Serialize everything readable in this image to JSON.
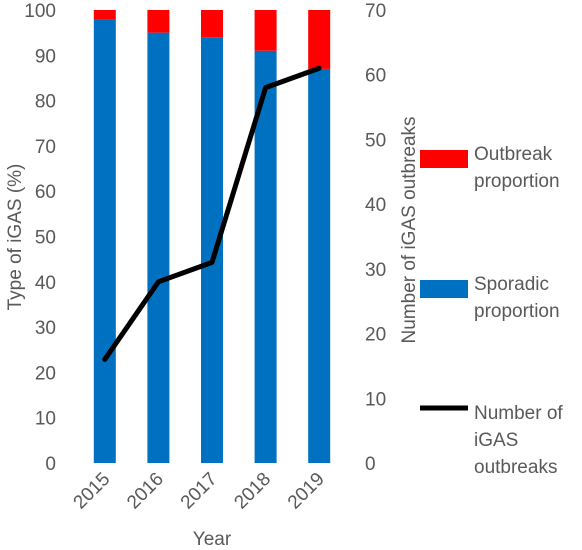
{
  "chart_data": {
    "type": "bar",
    "stacked": true,
    "categories": [
      "2015",
      "2016",
      "2017",
      "2018",
      "2019"
    ],
    "series": [
      {
        "name": "Sporadic proportion",
        "axis": "left",
        "kind": "bar",
        "color": "#0070C0",
        "values": [
          98,
          95,
          94,
          91,
          87
        ]
      },
      {
        "name": "Outbreak proportion",
        "axis": "left",
        "kind": "bar",
        "color": "#FF0000",
        "values": [
          2,
          5,
          6,
          9,
          13
        ]
      },
      {
        "name": "Number of iGAS outbreaks",
        "axis": "right",
        "kind": "line",
        "color": "#000000",
        "values": [
          16,
          28,
          31,
          58,
          61
        ]
      }
    ],
    "xlabel": "Year",
    "ylabel": "Type of iGAS (%)",
    "y2label": "Number of iGAS outbreaks",
    "ylim": [
      0,
      100
    ],
    "yticks": [
      "0",
      "10",
      "20",
      "30",
      "40",
      "50",
      "60",
      "70",
      "80",
      "90",
      "100"
    ],
    "y2lim": [
      0,
      70
    ],
    "y2ticks": [
      "0",
      "10",
      "20",
      "30",
      "40",
      "50",
      "60",
      "70"
    ],
    "legend_position": "right",
    "legend": [
      {
        "lines": [
          "Outbreak",
          "proportion"
        ],
        "color": "#FF0000",
        "marker": "box"
      },
      {
        "lines": [
          "Sporadic",
          "proportion"
        ],
        "color": "#0070C0",
        "marker": "box"
      },
      {
        "lines": [
          "Number of",
          "iGAS",
          "outbreaks"
        ],
        "color": "#000000",
        "marker": "line"
      }
    ],
    "grid": false
  }
}
